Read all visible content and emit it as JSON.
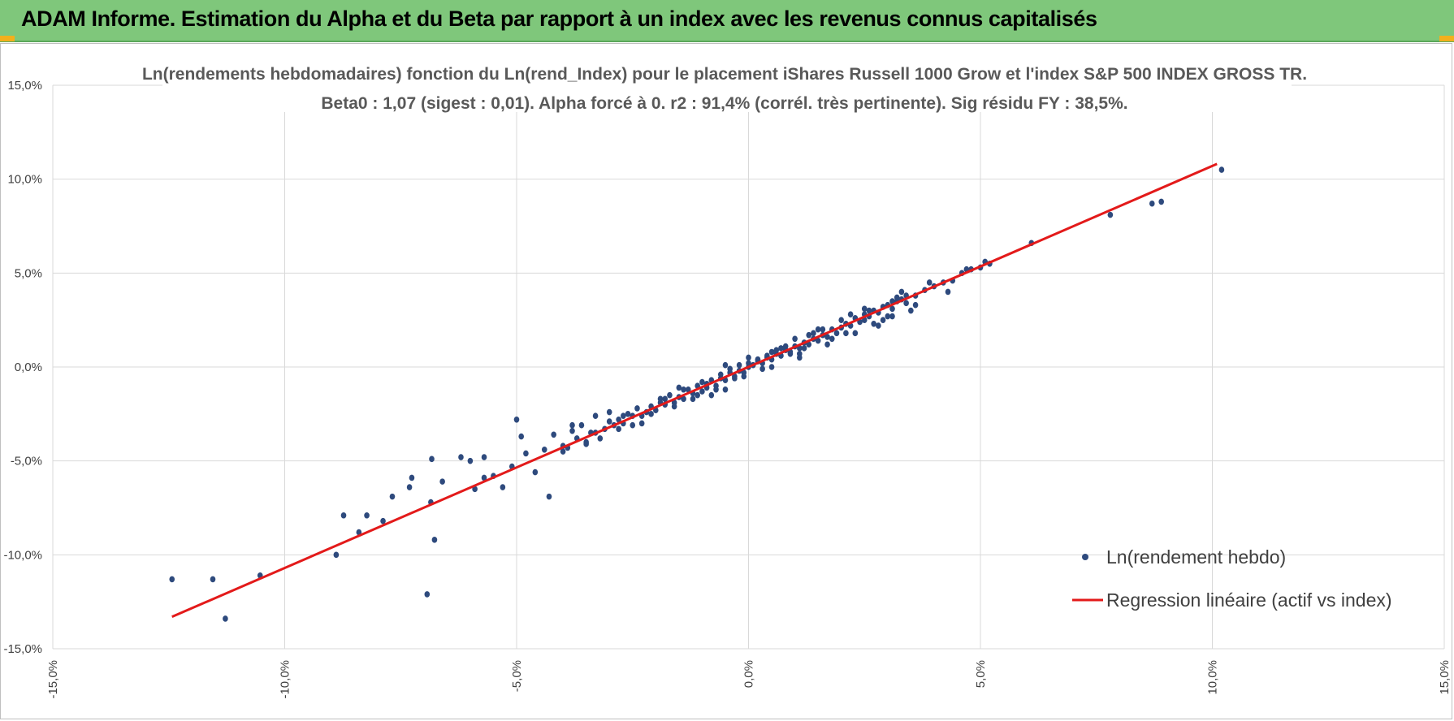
{
  "header": {
    "title": "ADAM Informe. Estimation du Alpha et du Beta par rapport à un index avec les revenus connus capitalisés"
  },
  "colors": {
    "header_bg": "#7fc77b",
    "points": "#2e4a7d",
    "regression": "#e31a1a",
    "grid": "#d9d9d9"
  },
  "chart_data": {
    "type": "scatter",
    "title": "Ln(rendements hebdomadaires) fonction du Ln(rend_Index) pour le placement iShares Russell 1000 Grow et l'index S&P 500 INDEX GROSS TR.",
    "subtitle": "Beta0 : 1,07 (sigest : 0,01). Alpha forcé à 0. r2 : 91,4% (corrél. très pertinente). Sig résidu FY : 38,5%.",
    "xlim": [
      -0.15,
      0.15
    ],
    "ylim": [
      -0.15,
      0.15
    ],
    "x_ticks": [
      -0.15,
      -0.1,
      -0.05,
      0.0,
      0.05,
      0.1,
      0.15
    ],
    "y_ticks": [
      -0.15,
      -0.1,
      -0.05,
      0.0,
      0.05,
      0.1,
      0.15
    ],
    "x_tick_labels": [
      "-15,0%",
      "-10,0%",
      "-5,0%",
      "0,0%",
      "5,0%",
      "10,0%",
      "15,0%"
    ],
    "y_tick_labels": [
      "-15,0%",
      "-10,0%",
      "-5,0%",
      "0,0%",
      "5,0%",
      "10,0%",
      "15,0%"
    ],
    "grid": true,
    "legend_position": "bottom-right",
    "series": [
      {
        "name": "Ln(rendement hebdo)",
        "type": "scatter",
        "color": "#2e4a7d",
        "x": [
          -0.1243,
          -0.1155,
          -0.1128,
          -0.1053,
          -0.0889,
          -0.0873,
          -0.084,
          -0.0823,
          -0.0788,
          -0.0768,
          -0.0731,
          -0.0726,
          -0.0693,
          -0.0685,
          -0.0683,
          -0.0677,
          -0.066,
          -0.062,
          -0.06,
          -0.059,
          -0.057,
          -0.055,
          -0.053,
          -0.051,
          -0.05,
          -0.049,
          -0.046,
          -0.044,
          -0.043,
          -0.042,
          -0.04,
          -0.039,
          -0.038,
          -0.037,
          -0.036,
          -0.035,
          -0.034,
          -0.033,
          -0.032,
          -0.031,
          -0.03,
          -0.029,
          -0.028,
          -0.027,
          -0.026,
          -0.025,
          -0.024,
          -0.023,
          -0.022,
          -0.021,
          -0.02,
          -0.019,
          -0.018,
          -0.017,
          -0.016,
          -0.015,
          -0.014,
          -0.013,
          -0.012,
          -0.011,
          -0.01,
          -0.009,
          -0.008,
          -0.007,
          -0.006,
          -0.005,
          -0.004,
          -0.003,
          -0.002,
          -0.001,
          0.0,
          0.001,
          0.002,
          0.003,
          0.004,
          0.005,
          0.006,
          0.007,
          0.008,
          0.009,
          0.01,
          0.011,
          0.012,
          0.013,
          0.014,
          0.015,
          0.016,
          0.017,
          0.018,
          0.019,
          0.02,
          0.021,
          0.022,
          0.023,
          0.024,
          0.025,
          0.026,
          0.027,
          0.028,
          0.029,
          0.03,
          0.031,
          0.032,
          0.033,
          0.034,
          0.036,
          0.038,
          0.04,
          0.042,
          0.044,
          0.046,
          0.048,
          0.05,
          0.051,
          0.052,
          0.061,
          0.078,
          0.087,
          0.089,
          0.102,
          -0.057,
          -0.048,
          -0.038,
          -0.03,
          -0.025,
          -0.019,
          -0.015,
          -0.012,
          -0.01,
          -0.007,
          -0.004,
          -0.001,
          0.002,
          0.005,
          0.008,
          0.011,
          0.014,
          0.017,
          0.02,
          0.023,
          0.026,
          0.029,
          0.032,
          0.035,
          0.039,
          0.043,
          0.047,
          -0.035,
          -0.027,
          -0.021,
          -0.016,
          -0.011,
          -0.006,
          -0.002,
          0.003,
          0.007,
          0.012,
          0.016,
          0.021,
          0.025,
          0.03,
          0.033,
          -0.04,
          -0.033,
          -0.028,
          -0.023,
          -0.018,
          -0.014,
          -0.009,
          -0.005,
          0.0,
          0.004,
          0.009,
          0.013,
          0.018,
          0.022,
          0.027,
          0.031,
          0.036,
          -0.005,
          0.0,
          0.005,
          0.01,
          0.015,
          -0.008,
          -0.003,
          0.002,
          0.006,
          0.011,
          0.025,
          0.028,
          0.031,
          0.034
        ],
        "y": [
          -0.113,
          -0.113,
          -0.134,
          -0.111,
          -0.1,
          -0.079,
          -0.088,
          -0.079,
          -0.082,
          -0.069,
          -0.064,
          -0.059,
          -0.121,
          -0.072,
          -0.049,
          -0.092,
          -0.061,
          -0.048,
          -0.05,
          -0.065,
          -0.059,
          -0.058,
          -0.064,
          -0.053,
          -0.028,
          -0.037,
          -0.056,
          -0.044,
          -0.069,
          -0.036,
          -0.042,
          -0.043,
          -0.034,
          -0.038,
          -0.031,
          -0.04,
          -0.035,
          -0.026,
          -0.038,
          -0.033,
          -0.029,
          -0.031,
          -0.028,
          -0.03,
          -0.025,
          -0.026,
          -0.022,
          -0.03,
          -0.024,
          -0.021,
          -0.023,
          -0.017,
          -0.02,
          -0.015,
          -0.019,
          -0.016,
          -0.017,
          -0.012,
          -0.014,
          -0.01,
          -0.013,
          -0.011,
          -0.007,
          -0.01,
          -0.006,
          -0.007,
          -0.003,
          -0.005,
          -0.002,
          -0.003,
          0.0,
          0.001,
          0.003,
          0.002,
          0.005,
          0.004,
          0.007,
          0.006,
          0.009,
          0.008,
          0.011,
          0.01,
          0.013,
          0.012,
          0.015,
          0.014,
          0.017,
          0.016,
          0.02,
          0.018,
          0.021,
          0.023,
          0.022,
          0.026,
          0.024,
          0.028,
          0.027,
          0.03,
          0.029,
          0.032,
          0.033,
          0.031,
          0.035,
          0.036,
          0.034,
          0.038,
          0.041,
          0.043,
          0.045,
          0.046,
          0.05,
          0.052,
          0.053,
          0.056,
          0.055,
          0.066,
          0.081,
          0.087,
          0.088,
          0.105,
          -0.048,
          -0.046,
          -0.031,
          -0.024,
          -0.031,
          -0.019,
          -0.011,
          -0.017,
          -0.008,
          -0.012,
          -0.001,
          -0.005,
          0.004,
          0.0,
          0.011,
          0.007,
          0.018,
          0.012,
          0.025,
          0.018,
          0.03,
          0.025,
          0.037,
          0.03,
          0.045,
          0.04,
          0.052,
          -0.041,
          -0.026,
          -0.025,
          -0.021,
          -0.015,
          -0.004,
          0.001,
          -0.001,
          0.01,
          0.01,
          0.02,
          0.018,
          0.031,
          0.027,
          0.04,
          -0.045,
          -0.035,
          -0.033,
          -0.026,
          -0.017,
          -0.012,
          -0.009,
          0.001,
          0.002,
          0.006,
          0.007,
          0.017,
          0.015,
          0.028,
          0.023,
          0.035,
          0.033,
          -0.012,
          0.005,
          0.008,
          0.015,
          0.02,
          -0.015,
          -0.006,
          0.004,
          0.009,
          0.005,
          0.025,
          0.022,
          0.027,
          0.038
        ]
      },
      {
        "name": "Regression linéaire (actif vs index)",
        "type": "line",
        "color": "#e31a1a",
        "x": [
          -0.1243,
          0.101
        ],
        "y": [
          -0.133,
          0.1081
        ]
      }
    ]
  }
}
